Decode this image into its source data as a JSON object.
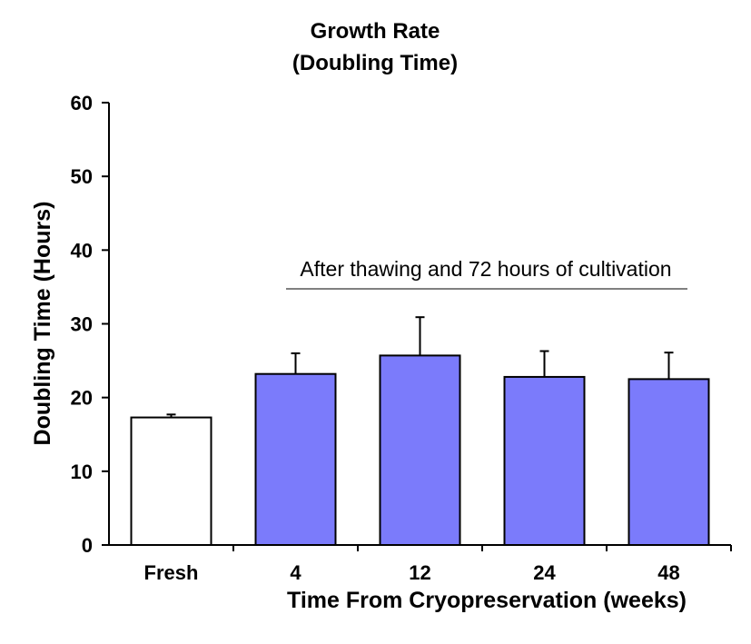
{
  "chart_data": {
    "type": "bar",
    "title_line1": "Growth Rate",
    "title_line2": "(Doubling Time)",
    "xlabel": "Time From Cryopreservation (weeks)",
    "ylabel": "Doubling Time (Hours)",
    "ylim": [
      0,
      60
    ],
    "yticks": [
      0,
      10,
      20,
      30,
      40,
      50,
      60
    ],
    "categories": [
      "Fresh",
      "4",
      "12",
      "24",
      "48"
    ],
    "values": [
      17.3,
      23.2,
      25.7,
      22.8,
      22.5
    ],
    "errors": [
      0.4,
      2.8,
      5.2,
      3.5,
      3.6
    ],
    "bar_colors": [
      "#ffffff",
      "#7b7bfb",
      "#7b7bfb",
      "#7b7bfb",
      "#7b7bfb"
    ],
    "annotation": "After thawing and 72 hours of cultivation",
    "grid": false,
    "legend": "none"
  }
}
